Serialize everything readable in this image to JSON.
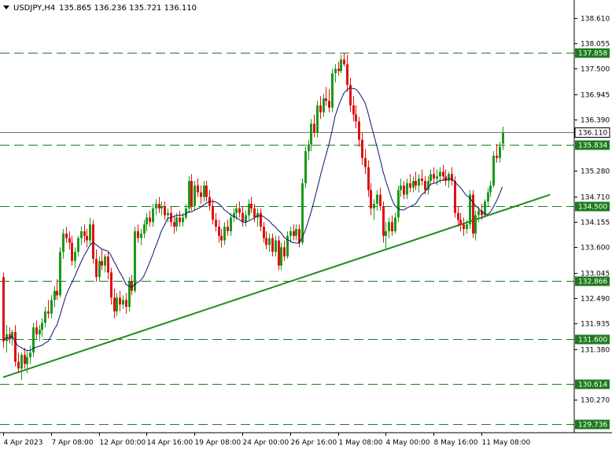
{
  "header": {
    "symbol": "USDJPY,H4",
    "ohlc": "135.865 136.236 135.721 136.110",
    "menu_icon": "triangle-down-icon"
  },
  "colors": {
    "bull": "#1a9a1a",
    "bear": "#e01010",
    "level_line": "#1e7a1e",
    "trendline": "#1e8c1e",
    "ma_line": "#101070",
    "current_line": "#707070",
    "axis": "#000000"
  },
  "chart_data": {
    "type": "candlestick",
    "title": "USDJPY,H4",
    "ylim": [
      129.55,
      138.95
    ],
    "y_ticks": [
      "138.610",
      "138.055",
      "137.500",
      "136.945",
      "136.390",
      "135.280",
      "134.710",
      "134.155",
      "133.600",
      "133.045",
      "132.490",
      "131.935",
      "131.380",
      "130.270"
    ],
    "x_ticks": [
      "4 Apr 2023",
      "7 Apr 08:00",
      "12 Apr 00:00",
      "14 Apr 16:00",
      "19 Apr 08:00",
      "24 Apr 00:00",
      "26 Apr 16:00",
      "1 May 08:00",
      "4 May 00:00",
      "8 May 16:00",
      "11 May 08:00"
    ],
    "x_tick_bars": [
      0,
      16,
      32,
      48,
      64,
      80,
      96,
      112,
      128,
      144,
      160
    ],
    "levels": [
      "137.858",
      "135.834",
      "134.500",
      "132.866",
      "131.600",
      "130.614",
      "129.736"
    ],
    "current_price": "136.110",
    "trendline": {
      "from_bar": 0,
      "from_price": 130.76,
      "to_bar": 183,
      "to_price": 134.75
    },
    "candles": [
      {
        "o": 132.95,
        "h": 133.05,
        "l": 131.4,
        "c": 131.55
      },
      {
        "o": 131.55,
        "h": 131.9,
        "l": 131.3,
        "c": 131.7
      },
      {
        "o": 131.7,
        "h": 131.85,
        "l": 131.5,
        "c": 131.6
      },
      {
        "o": 131.6,
        "h": 131.8,
        "l": 131.45,
        "c": 131.75
      },
      {
        "o": 131.75,
        "h": 131.9,
        "l": 131.0,
        "c": 131.1
      },
      {
        "o": 131.1,
        "h": 131.3,
        "l": 130.85,
        "c": 130.95
      },
      {
        "o": 130.95,
        "h": 131.3,
        "l": 130.7,
        "c": 131.25
      },
      {
        "o": 131.25,
        "h": 131.4,
        "l": 130.95,
        "c": 131.05
      },
      {
        "o": 131.05,
        "h": 131.35,
        "l": 130.85,
        "c": 131.2
      },
      {
        "o": 131.2,
        "h": 131.45,
        "l": 131.05,
        "c": 131.3
      },
      {
        "o": 131.3,
        "h": 131.95,
        "l": 131.2,
        "c": 131.85
      },
      {
        "o": 131.85,
        "h": 132.0,
        "l": 131.6,
        "c": 131.7
      },
      {
        "o": 131.7,
        "h": 131.9,
        "l": 131.55,
        "c": 131.8
      },
      {
        "o": 131.8,
        "h": 132.05,
        "l": 131.65,
        "c": 131.95
      },
      {
        "o": 131.95,
        "h": 132.3,
        "l": 131.85,
        "c": 132.2
      },
      {
        "o": 132.2,
        "h": 132.45,
        "l": 132.05,
        "c": 132.15
      },
      {
        "o": 132.15,
        "h": 132.55,
        "l": 132.05,
        "c": 132.45
      },
      {
        "o": 132.45,
        "h": 132.75,
        "l": 132.3,
        "c": 132.65
      },
      {
        "o": 132.65,
        "h": 132.9,
        "l": 132.45,
        "c": 132.55
      },
      {
        "o": 132.55,
        "h": 133.6,
        "l": 132.5,
        "c": 133.5
      },
      {
        "o": 133.5,
        "h": 134.0,
        "l": 133.35,
        "c": 133.9
      },
      {
        "o": 133.9,
        "h": 134.05,
        "l": 133.7,
        "c": 133.8
      },
      {
        "o": 133.8,
        "h": 133.95,
        "l": 133.55,
        "c": 133.7
      },
      {
        "o": 133.7,
        "h": 133.85,
        "l": 133.2,
        "c": 133.3
      },
      {
        "o": 133.3,
        "h": 133.6,
        "l": 133.15,
        "c": 133.5
      },
      {
        "o": 133.5,
        "h": 133.85,
        "l": 133.4,
        "c": 133.8
      },
      {
        "o": 133.8,
        "h": 134.05,
        "l": 133.65,
        "c": 133.95
      },
      {
        "o": 133.95,
        "h": 134.1,
        "l": 133.7,
        "c": 133.85
      },
      {
        "o": 133.85,
        "h": 134.0,
        "l": 133.6,
        "c": 133.75
      },
      {
        "o": 133.75,
        "h": 134.25,
        "l": 133.65,
        "c": 134.1
      },
      {
        "o": 134.1,
        "h": 134.2,
        "l": 133.25,
        "c": 133.35
      },
      {
        "o": 133.35,
        "h": 133.55,
        "l": 132.85,
        "c": 132.95
      },
      {
        "o": 132.95,
        "h": 133.4,
        "l": 132.85,
        "c": 133.3
      },
      {
        "o": 133.3,
        "h": 133.55,
        "l": 133.1,
        "c": 133.2
      },
      {
        "o": 133.2,
        "h": 133.45,
        "l": 133.05,
        "c": 133.4
      },
      {
        "o": 133.4,
        "h": 133.5,
        "l": 132.9,
        "c": 133.05
      },
      {
        "o": 133.05,
        "h": 133.15,
        "l": 132.35,
        "c": 132.5
      },
      {
        "o": 132.5,
        "h": 132.7,
        "l": 132.05,
        "c": 132.2
      },
      {
        "o": 132.2,
        "h": 132.6,
        "l": 132.1,
        "c": 132.5
      },
      {
        "o": 132.5,
        "h": 132.65,
        "l": 132.2,
        "c": 132.35
      },
      {
        "o": 132.35,
        "h": 132.55,
        "l": 132.25,
        "c": 132.45
      },
      {
        "o": 132.45,
        "h": 132.6,
        "l": 132.15,
        "c": 132.3
      },
      {
        "o": 132.3,
        "h": 132.95,
        "l": 132.2,
        "c": 132.85
      },
      {
        "o": 132.85,
        "h": 133.0,
        "l": 132.55,
        "c": 132.65
      },
      {
        "o": 132.65,
        "h": 134.05,
        "l": 132.6,
        "c": 133.95
      },
      {
        "o": 133.95,
        "h": 134.1,
        "l": 133.7,
        "c": 133.8
      },
      {
        "o": 133.8,
        "h": 134.0,
        "l": 133.65,
        "c": 133.9
      },
      {
        "o": 133.9,
        "h": 134.2,
        "l": 133.8,
        "c": 134.1
      },
      {
        "o": 134.1,
        "h": 134.35,
        "l": 133.95,
        "c": 134.25
      },
      {
        "o": 134.25,
        "h": 134.4,
        "l": 134.05,
        "c": 134.15
      },
      {
        "o": 134.15,
        "h": 134.55,
        "l": 134.05,
        "c": 134.45
      },
      {
        "o": 134.45,
        "h": 134.65,
        "l": 134.3,
        "c": 134.55
      },
      {
        "o": 134.55,
        "h": 134.7,
        "l": 134.35,
        "c": 134.45
      },
      {
        "o": 134.45,
        "h": 134.6,
        "l": 134.3,
        "c": 134.5
      },
      {
        "o": 134.5,
        "h": 134.6,
        "l": 134.2,
        "c": 134.3
      },
      {
        "o": 134.3,
        "h": 134.45,
        "l": 134.15,
        "c": 134.35
      },
      {
        "o": 134.35,
        "h": 134.5,
        "l": 134.05,
        "c": 134.15
      },
      {
        "o": 134.15,
        "h": 134.3,
        "l": 133.9,
        "c": 134.05
      },
      {
        "o": 134.05,
        "h": 134.35,
        "l": 133.95,
        "c": 134.25
      },
      {
        "o": 134.25,
        "h": 134.4,
        "l": 134.05,
        "c": 134.15
      },
      {
        "o": 134.15,
        "h": 134.35,
        "l": 134.05,
        "c": 134.25
      },
      {
        "o": 134.25,
        "h": 134.55,
        "l": 134.2,
        "c": 134.45
      },
      {
        "o": 134.45,
        "h": 135.15,
        "l": 134.35,
        "c": 135.05
      },
      {
        "o": 135.05,
        "h": 135.2,
        "l": 134.4,
        "c": 134.5
      },
      {
        "o": 134.5,
        "h": 135.05,
        "l": 134.4,
        "c": 134.95
      },
      {
        "o": 134.95,
        "h": 135.1,
        "l": 134.7,
        "c": 134.8
      },
      {
        "o": 134.8,
        "h": 134.95,
        "l": 134.55,
        "c": 134.7
      },
      {
        "o": 134.7,
        "h": 135.05,
        "l": 134.6,
        "c": 134.95
      },
      {
        "o": 134.95,
        "h": 135.05,
        "l": 134.6,
        "c": 134.7
      },
      {
        "o": 134.7,
        "h": 134.85,
        "l": 134.4,
        "c": 134.5
      },
      {
        "o": 134.5,
        "h": 134.65,
        "l": 134.1,
        "c": 134.2
      },
      {
        "o": 134.2,
        "h": 134.35,
        "l": 133.95,
        "c": 134.05
      },
      {
        "o": 134.05,
        "h": 134.2,
        "l": 133.7,
        "c": 133.85
      },
      {
        "o": 133.85,
        "h": 134.0,
        "l": 133.6,
        "c": 133.75
      },
      {
        "o": 133.75,
        "h": 134.15,
        "l": 133.65,
        "c": 134.05
      },
      {
        "o": 134.05,
        "h": 134.2,
        "l": 133.85,
        "c": 133.95
      },
      {
        "o": 133.95,
        "h": 134.35,
        "l": 133.85,
        "c": 134.25
      },
      {
        "o": 134.25,
        "h": 134.45,
        "l": 134.15,
        "c": 134.35
      },
      {
        "o": 134.35,
        "h": 134.55,
        "l": 134.2,
        "c": 134.45
      },
      {
        "o": 134.45,
        "h": 134.6,
        "l": 134.25,
        "c": 134.35
      },
      {
        "o": 134.35,
        "h": 134.5,
        "l": 134.05,
        "c": 134.15
      },
      {
        "o": 134.15,
        "h": 134.4,
        "l": 134.05,
        "c": 134.3
      },
      {
        "o": 134.3,
        "h": 134.65,
        "l": 134.2,
        "c": 134.55
      },
      {
        "o": 134.55,
        "h": 134.7,
        "l": 134.35,
        "c": 134.45
      },
      {
        "o": 134.45,
        "h": 134.55,
        "l": 134.15,
        "c": 134.25
      },
      {
        "o": 134.25,
        "h": 134.45,
        "l": 134.05,
        "c": 134.35
      },
      {
        "o": 134.35,
        "h": 134.45,
        "l": 133.95,
        "c": 134.05
      },
      {
        "o": 134.05,
        "h": 134.15,
        "l": 133.7,
        "c": 133.8
      },
      {
        "o": 133.8,
        "h": 133.95,
        "l": 133.55,
        "c": 133.65
      },
      {
        "o": 133.65,
        "h": 133.9,
        "l": 133.5,
        "c": 133.8
      },
      {
        "o": 133.8,
        "h": 133.9,
        "l": 133.4,
        "c": 133.5
      },
      {
        "o": 133.5,
        "h": 133.85,
        "l": 133.4,
        "c": 133.75
      },
      {
        "o": 133.75,
        "h": 133.85,
        "l": 133.1,
        "c": 133.2
      },
      {
        "o": 133.2,
        "h": 133.7,
        "l": 133.1,
        "c": 133.6
      },
      {
        "o": 133.6,
        "h": 133.75,
        "l": 133.3,
        "c": 133.4
      },
      {
        "o": 133.4,
        "h": 133.95,
        "l": 133.35,
        "c": 133.85
      },
      {
        "o": 133.85,
        "h": 134.05,
        "l": 133.7,
        "c": 133.95
      },
      {
        "o": 133.95,
        "h": 134.1,
        "l": 133.75,
        "c": 133.85
      },
      {
        "o": 133.85,
        "h": 134.1,
        "l": 133.75,
        "c": 134.0
      },
      {
        "o": 134.0,
        "h": 134.1,
        "l": 133.6,
        "c": 133.7
      },
      {
        "o": 133.7,
        "h": 135.1,
        "l": 133.65,
        "c": 135.0
      },
      {
        "o": 135.0,
        "h": 135.8,
        "l": 134.9,
        "c": 135.7
      },
      {
        "o": 135.7,
        "h": 135.95,
        "l": 135.5,
        "c": 135.85
      },
      {
        "o": 135.85,
        "h": 136.4,
        "l": 135.7,
        "c": 136.3
      },
      {
        "o": 136.3,
        "h": 136.5,
        "l": 136.0,
        "c": 136.1
      },
      {
        "o": 136.1,
        "h": 136.8,
        "l": 136.0,
        "c": 136.7
      },
      {
        "o": 136.7,
        "h": 136.9,
        "l": 136.4,
        "c": 136.55
      },
      {
        "o": 136.55,
        "h": 136.95,
        "l": 136.45,
        "c": 136.85
      },
      {
        "o": 136.85,
        "h": 137.1,
        "l": 136.7,
        "c": 136.8
      },
      {
        "o": 136.8,
        "h": 137.05,
        "l": 136.55,
        "c": 136.65
      },
      {
        "o": 136.65,
        "h": 137.5,
        "l": 136.55,
        "c": 137.4
      },
      {
        "o": 137.4,
        "h": 137.6,
        "l": 137.2,
        "c": 137.5
      },
      {
        "o": 137.5,
        "h": 137.65,
        "l": 137.35,
        "c": 137.45
      },
      {
        "o": 137.45,
        "h": 137.8,
        "l": 137.4,
        "c": 137.7
      },
      {
        "o": 137.7,
        "h": 137.85,
        "l": 137.55,
        "c": 137.6
      },
      {
        "o": 137.6,
        "h": 137.8,
        "l": 137.0,
        "c": 137.15
      },
      {
        "o": 137.15,
        "h": 137.3,
        "l": 136.55,
        "c": 136.7
      },
      {
        "o": 136.7,
        "h": 136.9,
        "l": 136.35,
        "c": 136.5
      },
      {
        "o": 136.5,
        "h": 136.7,
        "l": 136.2,
        "c": 136.35
      },
      {
        "o": 136.35,
        "h": 136.45,
        "l": 135.8,
        "c": 135.95
      },
      {
        "o": 135.95,
        "h": 136.1,
        "l": 135.4,
        "c": 135.55
      },
      {
        "o": 135.55,
        "h": 135.75,
        "l": 135.2,
        "c": 135.35
      },
      {
        "o": 135.35,
        "h": 135.5,
        "l": 134.7,
        "c": 134.85
      },
      {
        "o": 134.85,
        "h": 135.0,
        "l": 134.3,
        "c": 134.45
      },
      {
        "o": 134.45,
        "h": 134.65,
        "l": 134.2,
        "c": 134.55
      },
      {
        "o": 134.55,
        "h": 134.85,
        "l": 134.4,
        "c": 134.75
      },
      {
        "o": 134.75,
        "h": 134.9,
        "l": 134.4,
        "c": 134.5
      },
      {
        "o": 134.5,
        "h": 134.6,
        "l": 133.7,
        "c": 133.85
      },
      {
        "o": 133.85,
        "h": 134.15,
        "l": 133.55,
        "c": 133.95
      },
      {
        "o": 133.95,
        "h": 134.25,
        "l": 133.8,
        "c": 134.15
      },
      {
        "o": 134.15,
        "h": 134.3,
        "l": 133.85,
        "c": 133.95
      },
      {
        "o": 133.95,
        "h": 134.35,
        "l": 133.9,
        "c": 134.25
      },
      {
        "o": 134.25,
        "h": 134.95,
        "l": 134.15,
        "c": 134.85
      },
      {
        "o": 134.85,
        "h": 135.1,
        "l": 134.7,
        "c": 134.95
      },
      {
        "o": 134.95,
        "h": 135.05,
        "l": 134.65,
        "c": 134.75
      },
      {
        "o": 134.75,
        "h": 135.1,
        "l": 134.65,
        "c": 135.0
      },
      {
        "o": 135.0,
        "h": 135.2,
        "l": 134.8,
        "c": 134.9
      },
      {
        "o": 134.9,
        "h": 135.15,
        "l": 134.8,
        "c": 135.05
      },
      {
        "o": 135.05,
        "h": 135.25,
        "l": 134.85,
        "c": 134.95
      },
      {
        "o": 134.95,
        "h": 135.2,
        "l": 134.8,
        "c": 135.1
      },
      {
        "o": 135.1,
        "h": 135.3,
        "l": 134.95,
        "c": 135.05
      },
      {
        "o": 135.05,
        "h": 135.15,
        "l": 134.75,
        "c": 134.85
      },
      {
        "o": 134.85,
        "h": 135.15,
        "l": 134.75,
        "c": 135.05
      },
      {
        "o": 135.05,
        "h": 135.3,
        "l": 134.95,
        "c": 135.2
      },
      {
        "o": 135.2,
        "h": 135.35,
        "l": 135.0,
        "c": 135.1
      },
      {
        "o": 135.1,
        "h": 135.3,
        "l": 134.95,
        "c": 135.15
      },
      {
        "o": 135.15,
        "h": 135.35,
        "l": 135.0,
        "c": 135.25
      },
      {
        "o": 135.25,
        "h": 135.4,
        "l": 135.05,
        "c": 135.15
      },
      {
        "o": 135.15,
        "h": 135.3,
        "l": 134.95,
        "c": 135.05
      },
      {
        "o": 135.05,
        "h": 135.25,
        "l": 134.9,
        "c": 135.2
      },
      {
        "o": 135.2,
        "h": 135.35,
        "l": 134.95,
        "c": 135.05
      },
      {
        "o": 135.05,
        "h": 135.15,
        "l": 134.25,
        "c": 134.35
      },
      {
        "o": 134.35,
        "h": 134.5,
        "l": 134.05,
        "c": 134.2
      },
      {
        "o": 134.2,
        "h": 134.35,
        "l": 133.95,
        "c": 134.1
      },
      {
        "o": 134.1,
        "h": 134.25,
        "l": 133.85,
        "c": 134.0
      },
      {
        "o": 134.0,
        "h": 134.2,
        "l": 133.9,
        "c": 134.1
      },
      {
        "o": 134.1,
        "h": 134.85,
        "l": 134.0,
        "c": 134.75
      },
      {
        "o": 134.75,
        "h": 134.85,
        "l": 133.8,
        "c": 133.9
      },
      {
        "o": 133.9,
        "h": 134.4,
        "l": 133.75,
        "c": 134.3
      },
      {
        "o": 134.3,
        "h": 134.5,
        "l": 134.15,
        "c": 134.4
      },
      {
        "o": 134.4,
        "h": 134.55,
        "l": 134.2,
        "c": 134.3
      },
      {
        "o": 134.3,
        "h": 134.65,
        "l": 134.25,
        "c": 134.6
      },
      {
        "o": 134.6,
        "h": 134.9,
        "l": 134.5,
        "c": 134.8
      },
      {
        "o": 134.8,
        "h": 135.05,
        "l": 134.7,
        "c": 134.95
      },
      {
        "o": 134.95,
        "h": 135.7,
        "l": 134.9,
        "c": 135.6
      },
      {
        "o": 135.6,
        "h": 135.85,
        "l": 135.45,
        "c": 135.55
      },
      {
        "o": 135.55,
        "h": 135.9,
        "l": 135.45,
        "c": 135.8
      },
      {
        "o": 135.865,
        "h": 136.236,
        "l": 135.721,
        "c": 136.11
      }
    ]
  }
}
